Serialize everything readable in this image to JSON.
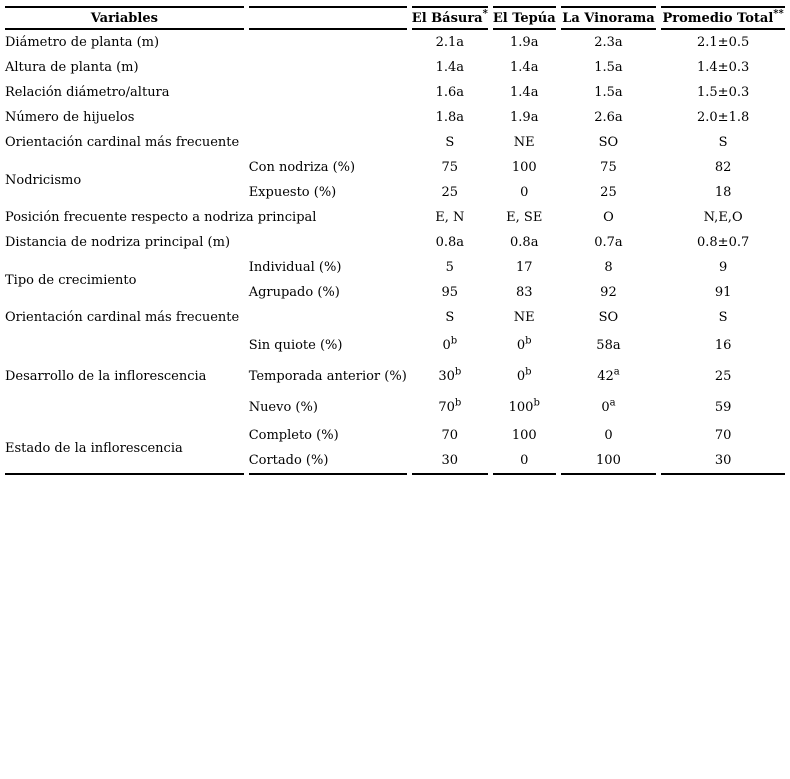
{
  "table": {
    "header": {
      "variables_label": "Variables",
      "sub_label": "",
      "sites": [
        {
          "name": "El Básura",
          "sup": "*"
        },
        {
          "name": "El Tepúa",
          "sup": ""
        },
        {
          "name": "La Vinorama",
          "sup": ""
        },
        {
          "name": "Promedio Total",
          "sup": "**"
        }
      ]
    },
    "rows": [
      {
        "variable": "Diámetro de planta (m)",
        "sub": "",
        "values": [
          {
            "v": "2.1a",
            "s": ""
          },
          {
            "v": "1.9a",
            "s": ""
          },
          {
            "v": "2.3a",
            "s": ""
          },
          {
            "v": "2.1±0.5",
            "s": ""
          }
        ]
      },
      {
        "variable": "Altura de planta (m)",
        "sub": "",
        "values": [
          {
            "v": "1.4a",
            "s": ""
          },
          {
            "v": "1.4a",
            "s": ""
          },
          {
            "v": "1.5a",
            "s": ""
          },
          {
            "v": "1.4±0.3",
            "s": ""
          }
        ]
      },
      {
        "variable": "Relación diámetro/altura",
        "sub": "",
        "values": [
          {
            "v": "1.6a",
            "s": ""
          },
          {
            "v": "1.4a",
            "s": ""
          },
          {
            "v": "1.5a",
            "s": ""
          },
          {
            "v": "1.5±0.3",
            "s": ""
          }
        ]
      },
      {
        "variable": "Número de hijuelos",
        "sub": "",
        "values": [
          {
            "v": "1.8a",
            "s": ""
          },
          {
            "v": "1.9a",
            "s": ""
          },
          {
            "v": "2.6a",
            "s": ""
          },
          {
            "v": "2.0±1.8",
            "s": ""
          }
        ]
      },
      {
        "variable": "Orientación cardinal más frecuente",
        "sub": "",
        "values": [
          {
            "v": "S",
            "s": ""
          },
          {
            "v": "NE",
            "s": ""
          },
          {
            "v": "SO",
            "s": ""
          },
          {
            "v": "S",
            "s": ""
          }
        ]
      },
      {
        "variable": "Nodricismo",
        "sub": "Con nodriza (%)",
        "values": [
          {
            "v": "75",
            "s": ""
          },
          {
            "v": "100",
            "s": ""
          },
          {
            "v": "75",
            "s": ""
          },
          {
            "v": "82",
            "s": ""
          }
        ]
      },
      {
        "variable": "",
        "sub": "Expuesto (%)",
        "values": [
          {
            "v": "25",
            "s": ""
          },
          {
            "v": "0",
            "s": ""
          },
          {
            "v": "25",
            "s": ""
          },
          {
            "v": "18",
            "s": ""
          }
        ]
      },
      {
        "variable": "Posición frecuente respecto a nodriza principal",
        "sub": "",
        "values": [
          {
            "v": "E, N",
            "s": ""
          },
          {
            "v": "E, SE",
            "s": ""
          },
          {
            "v": "O",
            "s": ""
          },
          {
            "v": "N,E,O",
            "s": ""
          }
        ]
      },
      {
        "variable": "Distancia de nodriza principal (m)",
        "sub": "",
        "values": [
          {
            "v": "0.8a",
            "s": ""
          },
          {
            "v": "0.8a",
            "s": ""
          },
          {
            "v": "0.7a",
            "s": ""
          },
          {
            "v": "0.8±0.7",
            "s": ""
          }
        ]
      },
      {
        "variable": "Tipo de crecimiento",
        "sub": "Individual (%)",
        "values": [
          {
            "v": "5",
            "s": ""
          },
          {
            "v": "17",
            "s": ""
          },
          {
            "v": "8",
            "s": ""
          },
          {
            "v": "9",
            "s": ""
          }
        ]
      },
      {
        "variable": "",
        "sub": "Agrupado (%)",
        "values": [
          {
            "v": "95",
            "s": ""
          },
          {
            "v": "83",
            "s": ""
          },
          {
            "v": "92",
            "s": ""
          },
          {
            "v": "91",
            "s": ""
          }
        ]
      },
      {
        "variable": "Orientación cardinal más frecuente",
        "sub": "",
        "values": [
          {
            "v": "S",
            "s": ""
          },
          {
            "v": "NE",
            "s": ""
          },
          {
            "v": "SO",
            "s": ""
          },
          {
            "v": "S",
            "s": ""
          }
        ]
      },
      {
        "variable": "Desarrollo de la inflorescencia",
        "sub": "Sin quiote (%)",
        "values": [
          {
            "v": "0",
            "s": "b"
          },
          {
            "v": "0",
            "s": "b"
          },
          {
            "v": "58a",
            "s": ""
          },
          {
            "v": "16",
            "s": ""
          }
        ]
      },
      {
        "variable": "",
        "sub": "Temporada anterior (%)",
        "values": [
          {
            "v": "30",
            "s": "b"
          },
          {
            "v": "0",
            "s": "b"
          },
          {
            "v": "42",
            "s": "a"
          },
          {
            "v": "25",
            "s": ""
          }
        ]
      },
      {
        "variable": "",
        "sub": "Nuevo (%)",
        "values": [
          {
            "v": "70",
            "s": "b"
          },
          {
            "v": "100",
            "s": "b"
          },
          {
            "v": "0",
            "s": "a"
          },
          {
            "v": "59",
            "s": ""
          }
        ]
      },
      {
        "variable": "Estado de la inflorescencia",
        "sub": "Completo (%)",
        "values": [
          {
            "v": "70",
            "s": ""
          },
          {
            "v": "100",
            "s": ""
          },
          {
            "v": "0",
            "s": ""
          },
          {
            "v": "70",
            "s": ""
          }
        ]
      },
      {
        "variable": "",
        "sub": "Cortado (%)",
        "values": [
          {
            "v": "30",
            "s": ""
          },
          {
            "v": "0",
            "s": ""
          },
          {
            "v": "100",
            "s": ""
          },
          {
            "v": "30",
            "s": ""
          }
        ]
      }
    ]
  }
}
